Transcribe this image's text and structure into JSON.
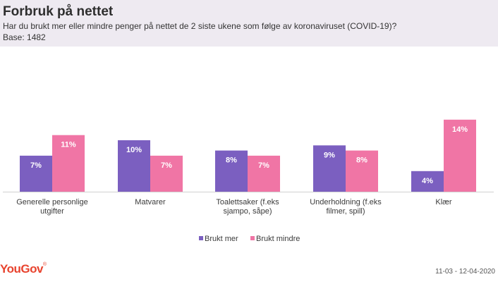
{
  "header": {
    "title": "Forbruk på nettet",
    "subtitle": "Har du brukt mer eller mindre penger på nettet de 2 siste ukene som følge av koronaviruset (COVID-19)?",
    "base": "Base: 1482"
  },
  "footer": {
    "logo": "YouGov",
    "logo_mark": "®",
    "date_range": "11-03 - 12-04-2020"
  },
  "colors": {
    "brukt_mer": "#7b5fc0",
    "brukt_mindre": "#f075a5",
    "header_bg": "#eeeaf1",
    "logo": "#e8432e"
  },
  "chart_data": {
    "type": "bar",
    "title": "",
    "xlabel": "",
    "ylabel": "",
    "categories": [
      [
        "Generelle personlige",
        "utgifter"
      ],
      [
        "Matvarer"
      ],
      [
        "Toalettsaker (f.eks",
        "sjampo, såpe)"
      ],
      [
        "Underholdning (f.eks",
        "filmer, spill)"
      ],
      [
        "Klær"
      ]
    ],
    "series": [
      {
        "name": "Brukt mer",
        "values": [
          7,
          10,
          8,
          9,
          4
        ],
        "labels": [
          "7%",
          "10%",
          "8%",
          "9%",
          "4%"
        ]
      },
      {
        "name": "Brukt mindre",
        "values": [
          11,
          7,
          7,
          8,
          14
        ],
        "labels": [
          "11%",
          "7%",
          "7%",
          "8%",
          "14%"
        ]
      }
    ],
    "ylim": [
      0,
      14
    ],
    "grid": false,
    "legend": "bottom-center"
  }
}
